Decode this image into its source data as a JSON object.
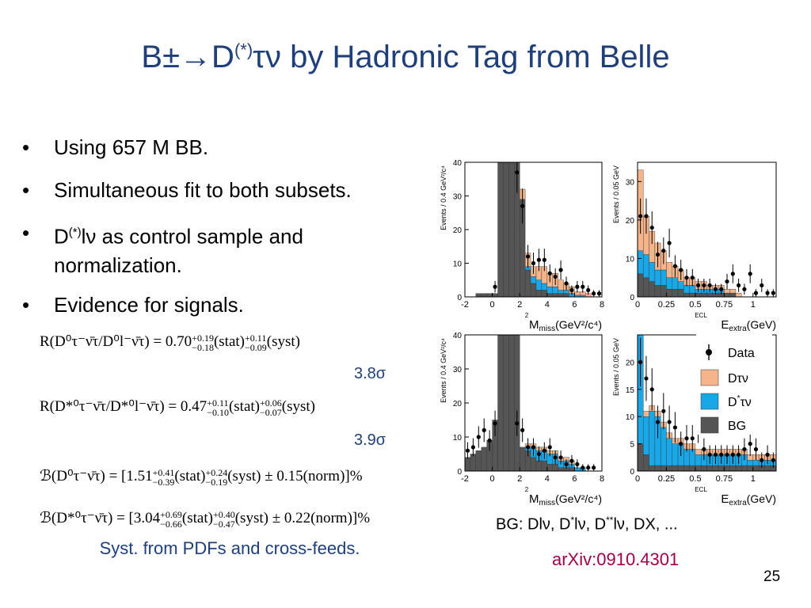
{
  "slide": {
    "title_main": "B±→D",
    "title_sup": "(*)",
    "title_rest": "τν by Hadronic Tag from Belle",
    "page_number": "25"
  },
  "bullets": [
    {
      "text": "Using 657 M BB."
    },
    {
      "text": "Simultaneous fit to both subsets."
    },
    {
      "pre": "D",
      "sup": "(*)",
      "post": "lν as control sample and normalization."
    },
    {
      "text": "Evidence for signals."
    }
  ],
  "formulas": {
    "r1_main": "R(D⁰τ⁻ν̄τ/D⁰l⁻ν̄τ) = 0.70",
    "r1_stat_up": "+0.19",
    "r1_stat_dn": "−0.18",
    "r1_stat": "(stat)",
    "r1_syst_up": "+0.11",
    "r1_syst_dn": "−0.09",
    "r1_syst": "(syst)",
    "r1_sig": "3.8σ",
    "r2_main": "R(D*⁰τ⁻ν̄τ/D*⁰l⁻ν̄τ) = 0.47",
    "r2_stat_up": "+0.11",
    "r2_stat_dn": "−0.10",
    "r2_stat": "(stat)",
    "r2_syst_up": "+0.06",
    "r2_syst_dn": "−0.07",
    "r2_syst": "(syst)",
    "r2_sig": "3.9σ",
    "b1_main": "ℬ(D⁰τ⁻ν̄τ) = [1.51",
    "b1_stat_up": "+0.41",
    "b1_stat_dn": "−0.39",
    "b1_stat": "(stat)",
    "b1_syst_up": "+0.24",
    "b1_syst_dn": "−0.19",
    "b1_syst": "(syst) ± 0.15(norm)]%",
    "b2_main": "ℬ(D*⁰τ⁻ν̄τ) = [3.04",
    "b2_stat_up": "+0.69",
    "b2_stat_dn": "−0.66",
    "b2_stat": "(stat)",
    "b2_syst_up": "+0.40",
    "b2_syst_dn": "−0.47",
    "b2_syst": "(syst) ± 0.22(norm)]%"
  },
  "notes": {
    "syst": "Syst. from PDFs and cross-feeds.",
    "bg_pre": "BG: Dlν, D",
    "bg_sup1": "*",
    "bg_mid": "lν, D",
    "bg_sup2": "**",
    "bg_post": "lν, DX, ...",
    "arxiv": "arXiv:0910.4301"
  },
  "legend": {
    "data": "Data",
    "dtaunu": "Dτν",
    "dstar_pre": "D",
    "dstar_sup": "*",
    "dstar_post": "τν",
    "bg": "BG"
  },
  "colors": {
    "title": "#1f3f7a",
    "bg": "#555555",
    "dstar": "#19a7e8",
    "dtau": "#f5b48a",
    "arxiv": "#a0004a"
  },
  "chart_data": [
    {
      "type": "bar",
      "panel": "top-left",
      "xlabel_main": "M",
      "xlabel_sup": "2",
      "xlabel_sub": "miss",
      "xlabel_unit": "(GeV²/c⁴)",
      "ylabel": "Events / 0.4 GeV²/c⁴",
      "xlim": [
        -2,
        8
      ],
      "ylim": [
        0,
        40
      ],
      "xticks": [
        "-2",
        "0",
        "2",
        "4",
        "6",
        "8"
      ],
      "yticks": [
        "0",
        "10",
        "20",
        "30",
        "40"
      ],
      "bin_width": 0.4,
      "x_start": -2,
      "bg": [
        0,
        0,
        1,
        1,
        1,
        1,
        40,
        40,
        40,
        40,
        29,
        8,
        4,
        2,
        2,
        1,
        1,
        1,
        1,
        0,
        0,
        0,
        0,
        0,
        0
      ],
      "dstar": [
        0,
        0,
        0,
        0,
        0,
        0,
        0,
        0,
        0,
        0,
        0,
        1,
        2,
        3,
        2,
        2,
        2,
        1,
        1,
        1,
        0.5,
        0.5,
        0,
        0,
        0
      ],
      "dtau": [
        0,
        0,
        0,
        0,
        0,
        0,
        0,
        0,
        0,
        0,
        3,
        4,
        3,
        4,
        5,
        4,
        4,
        3,
        2,
        2,
        1,
        1,
        1,
        0,
        0
      ],
      "data": [
        0,
        0,
        0,
        0,
        0,
        3,
        0,
        0,
        0,
        37,
        27,
        12,
        10,
        11,
        11,
        7,
        6,
        8,
        4,
        2,
        3,
        3,
        2,
        1,
        1
      ]
    },
    {
      "type": "bar",
      "panel": "top-right",
      "xlabel_main": "E",
      "xlabel_sup": "ECL",
      "xlabel_sub": "extra",
      "xlabel_unit": "(GeV)",
      "ylabel": "Events / 0.05 GeV",
      "xlim": [
        0,
        1.2
      ],
      "ylim": [
        0,
        35
      ],
      "xticks": [
        "0",
        "0.25",
        "0.5",
        "0.75",
        "1"
      ],
      "yticks": [
        "0",
        "10",
        "20",
        "30"
      ],
      "bin_width": 0.05,
      "x_start": 0,
      "bg": [
        6,
        5,
        4,
        3,
        3,
        2,
        2,
        2,
        1,
        1,
        1,
        1,
        1,
        1,
        1,
        1,
        1,
        0,
        0,
        0,
        0,
        0,
        0,
        0
      ],
      "dstar": [
        6,
        6,
        5,
        4,
        4,
        3,
        3,
        2,
        2,
        2,
        1,
        1,
        1,
        1,
        1,
        0,
        0,
        0,
        0,
        0,
        0,
        0,
        0,
        0
      ],
      "dtau": [
        21,
        10,
        8,
        7,
        5,
        4,
        3,
        3,
        2,
        2,
        2,
        2,
        1,
        1,
        1,
        1,
        1,
        1,
        0,
        0,
        0,
        0,
        0,
        0
      ],
      "data": [
        21,
        21,
        18,
        11,
        12,
        14,
        8,
        7,
        5,
        5,
        3,
        3,
        3,
        2,
        2,
        4,
        6,
        3,
        2,
        6,
        1,
        3,
        1,
        1
      ]
    },
    {
      "type": "bar",
      "panel": "bottom-left",
      "xlabel_main": "M",
      "xlabel_sup": "2",
      "xlabel_sub": "miss",
      "xlabel_unit": "(GeV²/c⁴)",
      "ylabel": "Events / 0.4 GeV²/c⁴",
      "xlim": [
        -2,
        8
      ],
      "ylim": [
        0,
        40
      ],
      "xticks": [
        "-2",
        "0",
        "2",
        "4",
        "6",
        "8"
      ],
      "yticks": [
        "0",
        "10",
        "20",
        "30",
        "40"
      ],
      "bin_width": 0.4,
      "x_start": -2,
      "bg": [
        4,
        5,
        6,
        7,
        9,
        15,
        40,
        40,
        40,
        40,
        7,
        6,
        4,
        3,
        3,
        2,
        2,
        1,
        1,
        1,
        0,
        0,
        0,
        0,
        0
      ],
      "dstar": [
        0,
        0,
        0,
        0,
        0,
        0,
        0,
        0,
        0,
        0,
        0,
        1,
        3,
        3,
        3,
        3,
        3,
        2,
        2,
        1,
        1,
        1,
        0,
        0,
        0
      ],
      "dtau": [
        0,
        0,
        0,
        0,
        0,
        0,
        0,
        0,
        0,
        0,
        0,
        1,
        1,
        1,
        1,
        1,
        1,
        1,
        1,
        1,
        0,
        0,
        0,
        0,
        0
      ],
      "data": [
        6,
        7,
        10,
        12,
        9,
        14,
        0,
        0,
        0,
        14,
        12,
        7,
        7,
        5,
        6,
        7,
        4,
        4,
        2,
        3,
        2,
        1,
        1,
        1,
        0
      ]
    },
    {
      "type": "bar",
      "panel": "bottom-right",
      "xlabel_main": "E",
      "xlabel_sup": "ECL",
      "xlabel_sub": "extra",
      "xlabel_unit": "(GeV)",
      "ylabel": "Events / 0.05 GeV",
      "xlim": [
        0,
        1.2
      ],
      "ylim": [
        0,
        25
      ],
      "xticks": [
        "0",
        "0.25",
        "0.5",
        "0.75",
        "1"
      ],
      "yticks": [
        "0",
        "5",
        "10",
        "15",
        "20"
      ],
      "bin_width": 0.05,
      "x_start": 0,
      "bg": [
        5,
        3,
        1,
        1,
        1,
        1,
        1,
        1,
        1,
        1,
        1,
        1,
        1,
        1,
        1,
        1,
        1,
        1,
        1,
        1,
        1,
        1,
        1,
        1
      ],
      "dstar": [
        20,
        7,
        10,
        9,
        7,
        5,
        4,
        4,
        3,
        3,
        2,
        2,
        2,
        2,
        2,
        2,
        2,
        2,
        2,
        1,
        1,
        1,
        1,
        1
      ],
      "dtau": [
        1,
        1,
        1,
        1,
        1,
        1,
        1,
        1,
        1,
        1,
        1,
        1,
        1,
        1,
        1,
        1,
        1,
        1,
        1,
        1,
        1,
        1,
        1,
        1
      ],
      "data": [
        20,
        17,
        15,
        9,
        11,
        9,
        8,
        5,
        6,
        6,
        8,
        4,
        3,
        3,
        3,
        3,
        3,
        3,
        4,
        5,
        4,
        2,
        3,
        2
      ]
    }
  ]
}
